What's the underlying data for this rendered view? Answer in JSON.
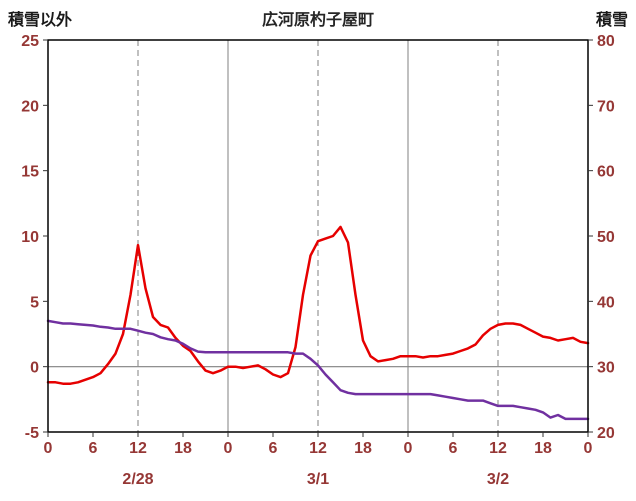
{
  "header": {
    "left_axis_title": "積雪以外",
    "title": "広河原杓子屋町",
    "right_axis_title": "積雪"
  },
  "chart_data": {
    "type": "line",
    "title": "広河原杓子屋町",
    "grid": true,
    "legend_position": "none",
    "grid_color": "#808080",
    "tick_label_color": "#953735",
    "border_color": "#000000",
    "left_axis": {
      "label": "積雪以外",
      "ticks": [
        -5,
        0,
        5,
        10,
        15,
        20,
        25
      ],
      "range": [
        -5,
        25
      ]
    },
    "right_axis": {
      "label": "積雪",
      "ticks": [
        20,
        30,
        40,
        50,
        60,
        70,
        80
      ],
      "range": [
        20,
        80
      ]
    },
    "x_axis": {
      "range": [
        0,
        72
      ],
      "hour_ticks": [
        0,
        6,
        12,
        18,
        24,
        30,
        36,
        42,
        48,
        54,
        60,
        66,
        72
      ],
      "hour_labels": [
        "0",
        "6",
        "12",
        "18",
        "0",
        "6",
        "12",
        "18",
        "0",
        "6",
        "12",
        "18",
        "0"
      ],
      "day_labels": [
        {
          "label": "2/28",
          "center_hour": 12
        },
        {
          "label": "3/1",
          "center_hour": 36
        },
        {
          "label": "3/2",
          "center_hour": 60
        }
      ],
      "solid_gridline_hours": [
        24,
        48
      ],
      "dashed_gridline_hours": [
        12,
        36,
        60
      ]
    },
    "zero_line": 0,
    "x_hours": [
      0,
      1,
      2,
      3,
      4,
      5,
      6,
      7,
      8,
      9,
      10,
      11,
      12,
      13,
      14,
      15,
      16,
      17,
      18,
      19,
      20,
      21,
      22,
      23,
      24,
      25,
      26,
      27,
      28,
      29,
      30,
      31,
      32,
      33,
      34,
      35,
      36,
      37,
      38,
      39,
      40,
      41,
      42,
      43,
      44,
      45,
      46,
      47,
      48,
      49,
      50,
      51,
      52,
      53,
      54,
      55,
      56,
      57,
      58,
      59,
      60,
      61,
      62,
      63,
      64,
      65,
      66,
      67,
      68,
      69,
      70,
      71,
      72
    ],
    "series": [
      {
        "name": "積雪以外",
        "axis": "left",
        "color": "#e60000",
        "values": [
          -1.2,
          -1.2,
          -1.3,
          -1.3,
          -1.2,
          -1.0,
          -0.8,
          -0.5,
          0.2,
          1.0,
          2.5,
          5.5,
          9.3,
          6.0,
          3.8,
          3.2,
          3.0,
          2.2,
          1.6,
          1.2,
          0.4,
          -0.3,
          -0.5,
          -0.3,
          0.0,
          0.0,
          -0.1,
          0.0,
          0.1,
          -0.2,
          -0.6,
          -0.8,
          -0.5,
          1.5,
          5.5,
          8.5,
          9.6,
          9.8,
          10.0,
          10.7,
          9.5,
          5.5,
          2.0,
          0.8,
          0.4,
          0.5,
          0.6,
          0.8,
          0.8,
          0.8,
          0.7,
          0.8,
          0.8,
          0.9,
          1.0,
          1.2,
          1.4,
          1.7,
          2.4,
          2.9,
          3.2,
          3.3,
          3.3,
          3.2,
          2.9,
          2.6,
          2.3,
          2.2,
          2.0,
          2.1,
          2.2,
          1.9,
          1.8
        ]
      },
      {
        "name": "積雪",
        "axis": "right",
        "color": "#7030a0",
        "values": [
          37.0,
          36.8,
          36.6,
          36.6,
          36.5,
          36.4,
          36.3,
          36.1,
          36.0,
          35.8,
          35.8,
          35.8,
          35.5,
          35.2,
          35.0,
          34.5,
          34.2,
          34.0,
          33.5,
          32.8,
          32.3,
          32.2,
          32.2,
          32.2,
          32.2,
          32.2,
          32.2,
          32.2,
          32.2,
          32.2,
          32.2,
          32.2,
          32.2,
          32.0,
          32.0,
          31.2,
          30.2,
          28.8,
          27.6,
          26.4,
          26.0,
          25.8,
          25.8,
          25.8,
          25.8,
          25.8,
          25.8,
          25.8,
          25.8,
          25.8,
          25.8,
          25.8,
          25.6,
          25.4,
          25.2,
          25.0,
          24.8,
          24.8,
          24.8,
          24.4,
          24.0,
          24.0,
          24.0,
          23.8,
          23.6,
          23.4,
          23.0,
          22.2,
          22.6,
          22.0,
          22.0,
          22.0,
          22.0
        ]
      }
    ]
  }
}
